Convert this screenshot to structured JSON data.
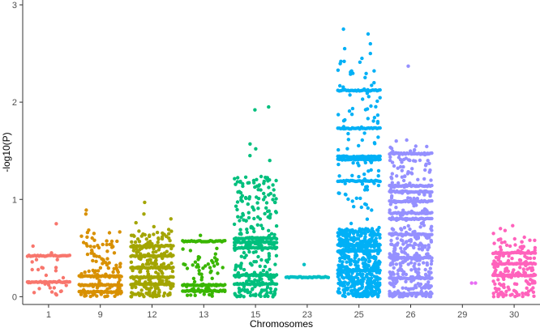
{
  "chart_data": {
    "type": "scatter",
    "title": "",
    "xlabel": "Chromosomes",
    "ylabel": "-log10(P)",
    "categories": [
      "1",
      "9",
      "12",
      "13",
      "15",
      "23",
      "25",
      "26",
      "29",
      "30"
    ],
    "ylim": [
      -0.08,
      3.05
    ],
    "yticks": [
      0,
      1,
      2,
      3
    ],
    "grid": false,
    "legend": "none",
    "colors": [
      "#F8766D",
      "#D89000",
      "#A3A500",
      "#39B600",
      "#00BF7D",
      "#00BFC4",
      "#00B0F6",
      "#9590FF",
      "#E76BF3",
      "#FF62BC"
    ],
    "series": [
      {
        "category": "1",
        "bands": [
          0.15,
          0.42
        ],
        "extra": [
          0.75,
          0.52,
          0.45,
          0.38,
          0.3,
          0.22
        ],
        "n": 24,
        "ymax": 0.45,
        "dense": 0.0
      },
      {
        "category": "9",
        "bands": [
          0.05,
          0.12,
          0.21
        ],
        "extra": [
          0.89,
          0.85,
          0.66,
          0.65,
          0.57
        ],
        "n": 110,
        "ymax": 0.7,
        "dense": 0.0
      },
      {
        "category": "12",
        "bands": [
          0.13,
          0.2,
          0.3,
          0.42,
          0.52
        ],
        "extra": [
          0.97,
          0.85,
          0.8,
          0.76,
          0.72
        ],
        "n": 200,
        "ymax": 0.7,
        "dense": 0.0
      },
      {
        "category": "13",
        "bands": [
          0.06,
          0.12,
          0.57
        ],
        "extra": [
          0.63,
          0.4,
          0.35,
          0.3,
          0.25
        ],
        "n": 60,
        "ymax": 0.5,
        "dense": 0.0
      },
      {
        "category": "15",
        "bands": [
          0.13,
          0.22,
          0.5,
          0.56,
          0.6
        ],
        "extra": [
          1.95,
          1.92,
          1.57,
          1.52,
          1.45,
          1.4
        ],
        "n": 260,
        "ymax": 1.25,
        "dense": 0.0
      },
      {
        "category": "23",
        "bands": [
          0.2
        ],
        "extra": [
          0.33
        ],
        "n": 0,
        "ymax": 0.2,
        "dense": 0.0
      },
      {
        "category": "25",
        "bands": [
          0.27,
          0.47,
          0.53,
          1.19,
          1.41,
          1.44,
          1.73,
          2.12
        ],
        "extra": [
          2.75,
          2.7,
          2.6,
          2.55,
          2.5,
          2.45
        ],
        "n": 600,
        "ymax": 2.42,
        "dense": 0.7
      },
      {
        "category": "26",
        "bands": [
          0.03,
          0.19,
          0.4,
          0.64,
          0.8,
          0.86,
          0.98,
          1.08,
          1.14,
          1.47
        ],
        "extra": [
          2.37,
          1.61,
          1.6
        ],
        "n": 380,
        "ymax": 1.55,
        "dense": 0.35
      },
      {
        "category": "29",
        "bands": [],
        "extra": [
          0.14,
          0.14
        ],
        "n": 0,
        "ymax": 0.15,
        "dense": 0.0
      },
      {
        "category": "30",
        "bands": [
          0.22,
          0.34,
          0.45
        ],
        "extra": [
          0.73,
          0.7,
          0.68,
          0.65
        ],
        "n": 160,
        "ymax": 0.62,
        "dense": 0.0
      }
    ]
  }
}
